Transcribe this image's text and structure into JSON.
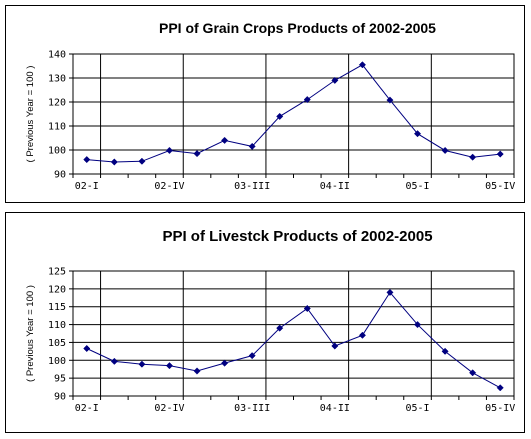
{
  "chart_data": [
    {
      "type": "line",
      "title": "PPI of Grain Crops Products of 2002-2005",
      "ylabel": "( Previous Year = 100 )",
      "xlabel": "",
      "ylim": [
        90,
        140
      ],
      "yticks": [
        90,
        100,
        110,
        120,
        130,
        140
      ],
      "x_tick_labels": [
        "02-I",
        "02-IV",
        "03-III",
        "04-II",
        "05-I",
        "05-IV"
      ],
      "x_tick_label_indices": [
        0,
        3,
        6,
        9,
        12,
        15
      ],
      "x": [
        "02-I",
        "02-II",
        "02-III",
        "02-IV",
        "03-I",
        "03-II",
        "03-III",
        "03-IV",
        "04-I",
        "04-II",
        "04-III",
        "04-IV",
        "05-I",
        "05-II",
        "05-III",
        "05-IV"
      ],
      "grid": true,
      "legend": "none",
      "series": [
        {
          "values": [
            96,
            95,
            95.3,
            99.8,
            98.5,
            104,
            101.5,
            114,
            121,
            129,
            135.5,
            120.8,
            106.8,
            99.8,
            97,
            98.3
          ]
        }
      ]
    },
    {
      "type": "line",
      "title": "PPI of Livestck Products of 2002-2005",
      "ylabel": "( Previous Year = 100 )",
      "xlabel": "",
      "ylim": [
        90,
        125
      ],
      "yticks": [
        90,
        95,
        100,
        105,
        110,
        115,
        120,
        125
      ],
      "x_tick_labels": [
        "02-I",
        "02-IV",
        "03-III",
        "04-II",
        "05-I",
        "05-IV"
      ],
      "x_tick_label_indices": [
        0,
        3,
        6,
        9,
        12,
        15
      ],
      "x": [
        "02-I",
        "02-II",
        "02-III",
        "02-IV",
        "03-I",
        "03-II",
        "03-III",
        "03-IV",
        "04-I",
        "04-II",
        "04-III",
        "04-IV",
        "05-I",
        "05-II",
        "05-III",
        "05-IV"
      ],
      "grid": true,
      "legend": "none",
      "series": [
        {
          "values": [
            103.3,
            99.7,
            98.9,
            98.5,
            97,
            99.2,
            101.3,
            109,
            114.5,
            104,
            107,
            119,
            110,
            102.5,
            96.5,
            92.3
          ]
        }
      ]
    }
  ]
}
